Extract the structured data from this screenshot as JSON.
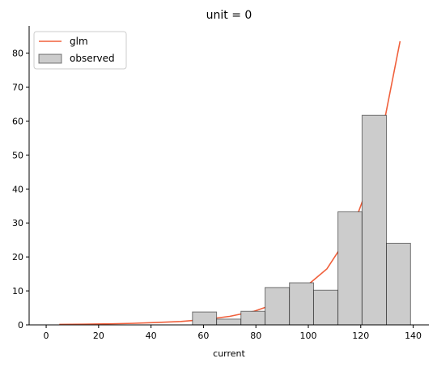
{
  "chart_data": {
    "type": "histogram",
    "title": "unit = 0",
    "xlabel": "current",
    "xlim": [
      -6.5,
      146
    ],
    "ylim": [
      0,
      88
    ],
    "xticks": [
      0,
      20,
      40,
      60,
      80,
      100,
      120,
      140
    ],
    "yticks": [
      0,
      10,
      20,
      30,
      40,
      50,
      60,
      70,
      80
    ],
    "legend": "upper left",
    "series": [
      {
        "name": "glm",
        "type": "line",
        "color": "#f0603c",
        "x": [
          5,
          14.3,
          23.6,
          32.9,
          42.1,
          51.4,
          60.7,
          70,
          79.3,
          88.6,
          97.9,
          107.1,
          116.4,
          125.7,
          135
        ],
        "values": [
          0.15,
          0.2,
          0.3,
          0.45,
          0.7,
          1.0,
          1.6,
          2.5,
          4,
          6.5,
          10.5,
          16.5,
          27.5,
          47,
          83.5
        ]
      },
      {
        "name": "observed",
        "type": "histogram",
        "color": "#cccccc",
        "bins": [
          55.8,
          65.0,
          74.3,
          83.5,
          92.8,
          102.0,
          111.3,
          120.5,
          129.8,
          139.0
        ],
        "values": [
          3.8,
          1.7,
          4.0,
          11,
          12.4,
          10.2,
          33.3,
          61.7,
          24.0
        ]
      }
    ]
  }
}
